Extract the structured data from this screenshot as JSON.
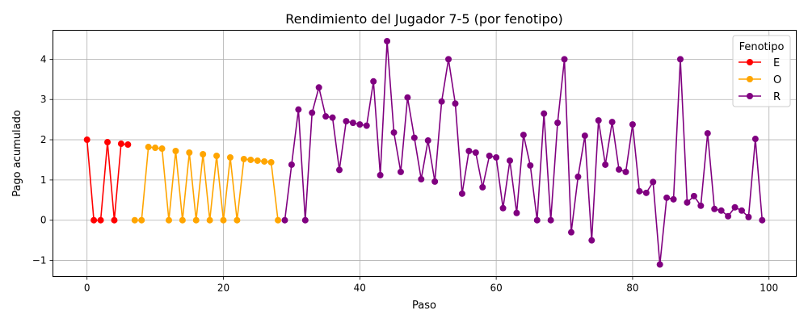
{
  "chart_data": {
    "type": "line",
    "title": "Rendimiento del Jugador 7-5 (por fenotipo)",
    "xlabel": "Paso",
    "ylabel": "Pago acumulado",
    "xlim": [
      -5,
      104
    ],
    "ylim": [
      -1.4,
      4.72
    ],
    "xticks": [
      0,
      20,
      40,
      60,
      80,
      100
    ],
    "yticks": [
      -1,
      0,
      1,
      2,
      3,
      4
    ],
    "ytick_labels": [
      "−1",
      "0",
      "1",
      "2",
      "3",
      "4"
    ],
    "grid": true,
    "legend": {
      "title": "Fenotipo",
      "placement": "top-right"
    },
    "series": [
      {
        "name": "E",
        "color": "#ff0000",
        "x": [
          0,
          1,
          2,
          3,
          4,
          5,
          6
        ],
        "y": [
          2.0,
          0.0,
          0.0,
          1.94,
          0.0,
          1.9,
          1.88
        ]
      },
      {
        "name": "O",
        "color": "#ffa500",
        "x": [
          7,
          8,
          9,
          10,
          11,
          12,
          13,
          14,
          15,
          16,
          17,
          18,
          19,
          20,
          21,
          22,
          23,
          24,
          25,
          26,
          27,
          28
        ],
        "y": [
          0.0,
          0.0,
          1.82,
          1.8,
          1.78,
          0.0,
          1.72,
          0.0,
          1.68,
          0.0,
          1.64,
          0.0,
          1.6,
          0.0,
          1.56,
          0.0,
          1.52,
          1.5,
          1.48,
          1.46,
          1.44,
          0.0
        ]
      },
      {
        "name": "R",
        "color": "#800080",
        "x": [
          29,
          30,
          31,
          32,
          33,
          34,
          35,
          36,
          37,
          38,
          39,
          40,
          41,
          42,
          43,
          44,
          45,
          46,
          47,
          48,
          49,
          50,
          51,
          52,
          53,
          54,
          55,
          56,
          57,
          58,
          59,
          60,
          61,
          62,
          63,
          64,
          65,
          66,
          67,
          68,
          69,
          70,
          71,
          72,
          73,
          74,
          75,
          76,
          77,
          78,
          79,
          80,
          81,
          82,
          83,
          84,
          85,
          86,
          87,
          88,
          89,
          90,
          91,
          92,
          93,
          94,
          95,
          96,
          97,
          98,
          99
        ],
        "y": [
          0.0,
          1.38,
          2.75,
          0.0,
          2.67,
          3.3,
          2.58,
          2.55,
          1.25,
          2.46,
          2.42,
          2.38,
          2.35,
          3.45,
          1.12,
          4.45,
          2.18,
          1.2,
          3.05,
          2.05,
          1.02,
          1.98,
          0.96,
          2.95,
          4.0,
          2.9,
          0.66,
          1.72,
          1.68,
          0.82,
          1.6,
          1.56,
          0.3,
          1.48,
          0.18,
          2.12,
          1.36,
          0.0,
          2.65,
          0.0,
          2.42,
          4.0,
          -0.3,
          1.08,
          2.1,
          -0.5,
          2.48,
          1.38,
          2.44,
          1.26,
          1.2,
          2.38,
          0.72,
          0.68,
          0.95,
          -1.1,
          0.56,
          0.52,
          4.0,
          0.44,
          0.6,
          0.36,
          2.16,
          0.28,
          0.24,
          0.1,
          0.32,
          0.24,
          0.08,
          2.02,
          0.0
        ]
      }
    ]
  }
}
